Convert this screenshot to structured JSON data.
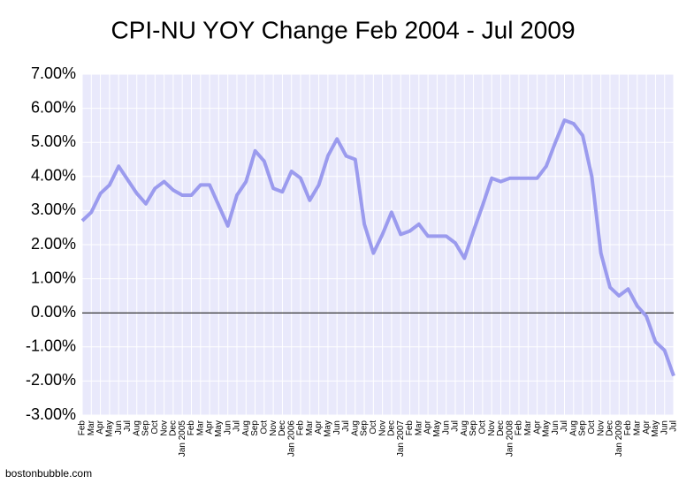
{
  "chart_data": {
    "type": "line",
    "title": "CPI-NU YOY Change Feb 2004 - Jul 2009",
    "source": "bostonbubble.com",
    "categories": [
      "Feb",
      "Mar",
      "Apr",
      "May",
      "Jun",
      "Jul",
      "Aug",
      "Sep",
      "Oct",
      "Nov",
      "Dec",
      "Jan 2005",
      "Feb",
      "Mar",
      "Apr",
      "May",
      "Jun",
      "Jul",
      "Aug",
      "Sep",
      "Oct",
      "Nov",
      "Dec",
      "Jan 2006",
      "Feb",
      "Mar",
      "Apr",
      "May",
      "Jun",
      "Jul",
      "Aug",
      "Sep",
      "Oct",
      "Nov",
      "Dec",
      "Jan 2007",
      "Feb",
      "Mar",
      "Apr",
      "May",
      "Jun",
      "Jul",
      "Aug",
      "Sep",
      "Oct",
      "Nov",
      "Dec",
      "Jan 2008",
      "Feb",
      "Mar",
      "Apr",
      "May",
      "Jun",
      "Jul",
      "Aug",
      "Sep",
      "Oct",
      "Nov",
      "Dec",
      "Jan 2009",
      "Feb",
      "Mar",
      "Apr",
      "May",
      "Jun",
      "Jul"
    ],
    "values": [
      2.7,
      2.95,
      3.5,
      3.75,
      4.3,
      3.9,
      3.5,
      3.2,
      3.65,
      3.85,
      3.6,
      3.45,
      3.45,
      3.75,
      3.75,
      3.15,
      2.55,
      3.45,
      3.85,
      4.75,
      4.45,
      3.65,
      3.55,
      4.15,
      3.95,
      3.3,
      3.75,
      4.6,
      5.1,
      4.6,
      4.5,
      2.6,
      1.75,
      2.3,
      2.95,
      2.3,
      2.4,
      2.6,
      2.25,
      2.25,
      2.25,
      2.05,
      1.6,
      2.4,
      3.15,
      3.95,
      3.85,
      3.95,
      3.95,
      3.95,
      3.95,
      4.3,
      5.0,
      5.65,
      5.55,
      5.2,
      4.0,
      1.75,
      0.75,
      0.5,
      0.7,
      0.2,
      -0.1,
      -0.85,
      -1.1,
      -1.85
    ],
    "color": "#9b9bee",
    "background": "#e9e9fb",
    "ylim": [
      -3,
      7
    ],
    "yticks": [
      {
        "value": -3,
        "label": "-3.00%"
      },
      {
        "value": -2,
        "label": "-2.00%"
      },
      {
        "value": -1,
        "label": "-1.00%"
      },
      {
        "value": 0,
        "label": "0.00%"
      },
      {
        "value": 1,
        "label": "1.00%"
      },
      {
        "value": 2,
        "label": "2.00%"
      },
      {
        "value": 3,
        "label": "3.00%"
      },
      {
        "value": 4,
        "label": "4.00%"
      },
      {
        "value": 5,
        "label": "5.00%"
      },
      {
        "value": 6,
        "label": "6.00%"
      },
      {
        "value": 7,
        "label": "7.00%"
      }
    ],
    "grid": true,
    "zeroline": true
  }
}
